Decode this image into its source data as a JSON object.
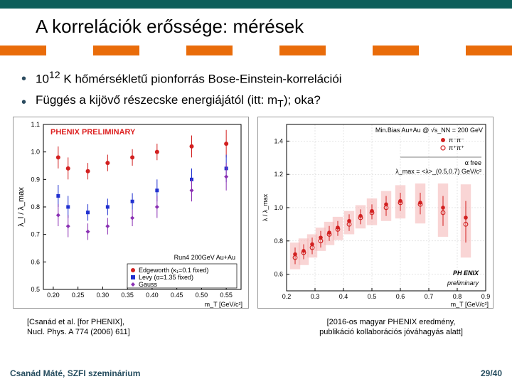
{
  "title": "A korrelációk erőssége: mérések",
  "bullets": [
    {
      "pre": "10",
      "sup": "12",
      "post": " K hőmérsékletű pionforrás Bose-Einstein-korrelációi"
    },
    {
      "pre": "Függés a kijövő részecske energiájától (itt: m",
      "sub": "T",
      "post": "); oka?"
    }
  ],
  "ref_left_l1": "[Csanád et al. [for PHENIX],",
  "ref_left_l2": "Nucl. Phys. A 774 (2006) 611]",
  "ref_right_l1": "[2016-os magyar PHENIX eredmény,",
  "ref_right_l2": "publikáció kollaborációs jóváhagyás alatt]",
  "footer_left": "Csanád Máté, SZFI szeminárium",
  "footer_right": "29/40",
  "band_colors": [
    "#e96c0a",
    "#ffffff",
    "#e96c0a",
    "#ffffff",
    "#e96c0a",
    "#ffffff",
    "#e96c0a",
    "#ffffff",
    "#e96c0a",
    "#ffffff",
    "#e96c0a"
  ],
  "chart_left": {
    "prelim_label": "PHENIX PRELIMINARY",
    "run_label": "Run4 200GeV Au+Au",
    "xlabel": "m_T [GeV/c²]",
    "ylabel": "λ_l / λ_max",
    "xlim": [
      0.18,
      0.58
    ],
    "ylim": [
      0.5,
      1.1
    ],
    "xticks": [
      0.2,
      0.25,
      0.3,
      0.35,
      0.4,
      0.45,
      0.5,
      0.55
    ],
    "yticks": [
      0.5,
      0.6,
      0.7,
      0.8,
      0.9,
      1.0,
      1.1
    ],
    "legend": [
      {
        "marker": "circle",
        "color": "#d22020",
        "label": "Edgeworth (κ₁=0.1 fixed)"
      },
      {
        "marker": "square",
        "color": "#2030d0",
        "label": "Levy (α=1.35 fixed)"
      },
      {
        "marker": "diamond",
        "color": "#8a2fb3",
        "label": "Gauss"
      }
    ],
    "series_red": {
      "color": "#d22020",
      "x": [
        0.21,
        0.23,
        0.27,
        0.31,
        0.36,
        0.41,
        0.48,
        0.55
      ],
      "y": [
        0.98,
        0.94,
        0.93,
        0.96,
        0.98,
        1.0,
        1.02,
        1.03
      ],
      "ey": [
        0.04,
        0.04,
        0.03,
        0.03,
        0.03,
        0.03,
        0.04,
        0.05
      ]
    },
    "series_blue": {
      "color": "#2030d0",
      "x": [
        0.21,
        0.23,
        0.27,
        0.31,
        0.36,
        0.41,
        0.48,
        0.55
      ],
      "y": [
        0.84,
        0.8,
        0.78,
        0.8,
        0.82,
        0.86,
        0.9,
        0.94
      ],
      "ey": [
        0.04,
        0.04,
        0.03,
        0.03,
        0.03,
        0.04,
        0.04,
        0.05
      ]
    },
    "series_purp": {
      "color": "#8a2fb3",
      "x": [
        0.21,
        0.23,
        0.27,
        0.31,
        0.36,
        0.41,
        0.48,
        0.55
      ],
      "y": [
        0.77,
        0.73,
        0.71,
        0.73,
        0.76,
        0.8,
        0.86,
        0.91
      ],
      "ey": [
        0.04,
        0.04,
        0.03,
        0.03,
        0.03,
        0.04,
        0.04,
        0.05
      ]
    }
  },
  "chart_right": {
    "header": "Min.Bias Au+Au @ √s_NN = 200 GeV",
    "legend": [
      {
        "marker": "fill",
        "color": "#d22020",
        "label": "π⁻π⁻"
      },
      {
        "marker": "open",
        "color": "#d22020",
        "label": "π⁺π⁺"
      }
    ],
    "annot1": "α free",
    "annot2": "λ_max = <λ>_(0.5,0.7) GeV/c²",
    "prelim1": "PH   ENIX",
    "prelim2": "preliminary",
    "xlabel": "m_T [GeV/c²]",
    "ylabel": "λ / λ_max",
    "xlim": [
      0.2,
      0.9
    ],
    "ylim": [
      0.5,
      1.5
    ],
    "xticks": [
      0.2,
      0.3,
      0.4,
      0.5,
      0.6,
      0.7,
      0.8,
      0.9
    ],
    "yticks": [
      0.6,
      0.8,
      1.0,
      1.2,
      1.4
    ],
    "box_color": "#f5b9b9",
    "series_fill": {
      "color": "#d22020",
      "x": [
        0.23,
        0.26,
        0.29,
        0.32,
        0.35,
        0.38,
        0.42,
        0.46,
        0.5,
        0.55,
        0.6,
        0.67,
        0.75,
        0.83
      ],
      "y": [
        0.72,
        0.74,
        0.78,
        0.82,
        0.85,
        0.88,
        0.92,
        0.95,
        0.98,
        1.02,
        1.04,
        1.03,
        1.0,
        0.94
      ],
      "ey": [
        0.04,
        0.04,
        0.04,
        0.04,
        0.04,
        0.04,
        0.04,
        0.04,
        0.04,
        0.05,
        0.05,
        0.06,
        0.07,
        0.1
      ]
    },
    "series_open": {
      "color": "#d22020",
      "x": [
        0.23,
        0.26,
        0.29,
        0.32,
        0.35,
        0.38,
        0.42,
        0.46,
        0.5,
        0.55,
        0.6,
        0.67,
        0.75,
        0.83
      ],
      "y": [
        0.7,
        0.73,
        0.76,
        0.8,
        0.84,
        0.87,
        0.9,
        0.94,
        0.97,
        1.0,
        1.03,
        1.02,
        0.97,
        0.9
      ],
      "ey": [
        0.04,
        0.04,
        0.04,
        0.04,
        0.04,
        0.04,
        0.04,
        0.04,
        0.04,
        0.05,
        0.05,
        0.06,
        0.08,
        0.11
      ]
    },
    "boxes": {
      "x": [
        0.23,
        0.26,
        0.29,
        0.32,
        0.35,
        0.38,
        0.42,
        0.46,
        0.5,
        0.55,
        0.6,
        0.67,
        0.75,
        0.83
      ],
      "y": [
        0.71,
        0.735,
        0.77,
        0.81,
        0.845,
        0.875,
        0.91,
        0.945,
        0.975,
        1.01,
        1.035,
        1.025,
        0.985,
        0.92
      ],
      "wy": [
        0.08,
        0.08,
        0.07,
        0.07,
        0.07,
        0.07,
        0.07,
        0.07,
        0.08,
        0.09,
        0.1,
        0.12,
        0.16,
        0.22
      ],
      "wx": 0.018
    }
  }
}
